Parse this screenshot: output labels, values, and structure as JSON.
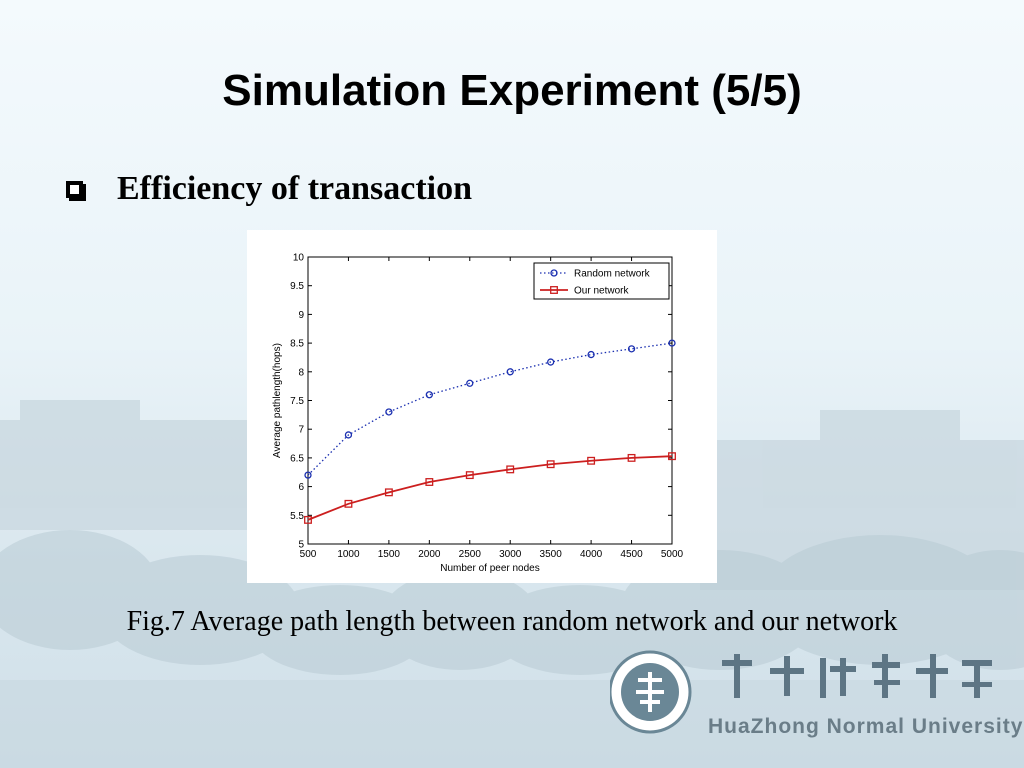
{
  "slide": {
    "title": "Simulation Experiment (5/5)",
    "bullet": "Efficiency of transaction",
    "caption": "Fig.7 Average path length between random network and our network"
  },
  "logo": {
    "university_name": "HuaZhong Normal University",
    "chinese_name": "華中師範大學"
  },
  "colors": {
    "random_series": "#1a2fb0",
    "our_series": "#cc1f1f"
  },
  "chart_data": {
    "type": "line",
    "xlabel": "Number of peer nodes",
    "ylabel": "Average pathlength(hops)",
    "xlim": [
      500,
      5000
    ],
    "ylim": [
      5,
      10
    ],
    "x_ticks": [
      500,
      1000,
      1500,
      2000,
      2500,
      3000,
      3500,
      4000,
      4500,
      5000
    ],
    "y_ticks": [
      5,
      5.5,
      6,
      6.5,
      7,
      7.5,
      8,
      8.5,
      9,
      9.5,
      10
    ],
    "legend_position": "top-right",
    "x": [
      500,
      1000,
      1500,
      2000,
      2500,
      3000,
      3500,
      4000,
      4500,
      5000
    ],
    "series": [
      {
        "name": "Random network",
        "style": "dotted",
        "marker": "circle",
        "values": [
          6.2,
          6.9,
          7.3,
          7.6,
          7.8,
          8.0,
          8.17,
          8.3,
          8.4,
          8.5
        ]
      },
      {
        "name": "Our network",
        "style": "solid",
        "marker": "square",
        "values": [
          5.42,
          5.7,
          5.9,
          6.08,
          6.2,
          6.3,
          6.39,
          6.45,
          6.5,
          6.53
        ]
      }
    ]
  }
}
